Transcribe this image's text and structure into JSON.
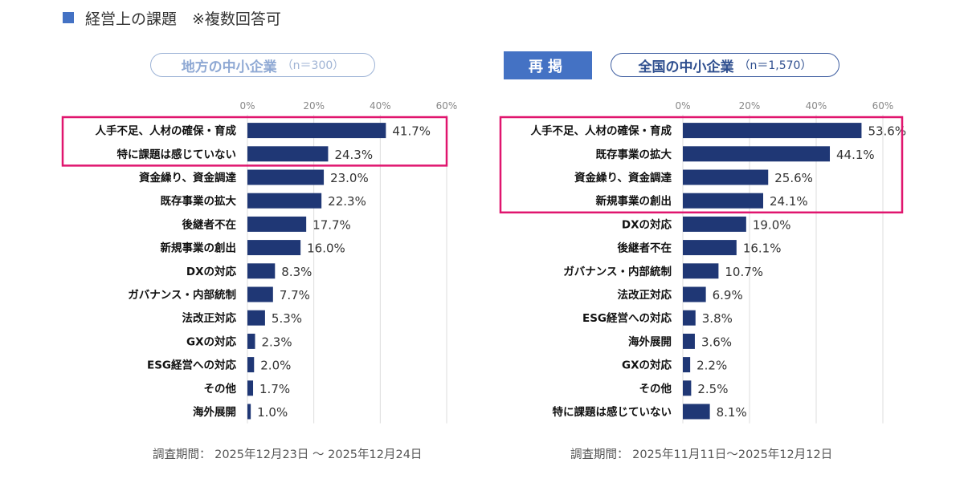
{
  "header": {
    "text": "経営上の課題　※複数回答可",
    "icon": "blue-square"
  },
  "left": {
    "pill_title": "地方の中小企業",
    "pill_note": "（n＝300）",
    "footer": "調査期間：  2025年12月23日 ～ 2025年12月24日"
  },
  "right": {
    "badge": "再掲",
    "pill_title": "全国の中小企業",
    "pill_note": "（n＝1,570）",
    "footer": "調査期間：  2025年11月11日～2025年12月12日"
  },
  "colors": {
    "bar": "#1f3775",
    "highlight": "#e0156e",
    "accent": "#4472c4",
    "grid": "#dddddd"
  },
  "chart_data": [
    {
      "type": "bar",
      "orientation": "horizontal",
      "categories": [
        "人手不足、人材の確保・育成",
        "特に課題は感じていない",
        "資金繰り、資金調達",
        "既存事業の拡大",
        "後継者不在",
        "新規事業の創出",
        "DXの対応",
        "ガバナンス・内部統制",
        "法改正対応",
        "GXの対応",
        "ESG経営への対応",
        "その他",
        "海外展開"
      ],
      "values": [
        41.7,
        24.3,
        23.0,
        22.3,
        17.7,
        16.0,
        8.3,
        7.7,
        5.3,
        2.3,
        2.0,
        1.7,
        1.0
      ],
      "value_labels": [
        "41.7%",
        "24.3%",
        "23.0%",
        "22.3%",
        "17.7%",
        "16.0%",
        "8.3%",
        "7.7%",
        "5.3%",
        "2.3%",
        "2.0%",
        "1.7%",
        "1.0%"
      ],
      "xlim": [
        0,
        60
      ],
      "xticks": [
        "0%",
        "20%",
        "40%",
        "60%"
      ],
      "highlighted_categories": [
        0,
        1
      ]
    },
    {
      "type": "bar",
      "orientation": "horizontal",
      "categories": [
        "人手不足、人材の確保・育成",
        "既存事業の拡大",
        "資金繰り、資金調達",
        "新規事業の創出",
        "DXの対応",
        "後継者不在",
        "ガバナンス・内部統制",
        "法改正対応",
        "ESG経営への対応",
        "海外展開",
        "GXの対応",
        "その他",
        "特に課題は感じていない"
      ],
      "values": [
        53.6,
        44.1,
        25.6,
        24.1,
        19.0,
        16.1,
        10.7,
        6.9,
        3.8,
        3.6,
        2.2,
        2.5,
        8.1
      ],
      "value_labels": [
        "53.6%",
        "44.1%",
        "25.6%",
        "24.1%",
        "19.0%",
        "16.1%",
        "10.7%",
        "6.9%",
        "3.8%",
        "3.6%",
        "2.2%",
        "2.5%",
        "8.1%"
      ],
      "xlim": [
        0,
        60
      ],
      "xticks": [
        "0%",
        "20%",
        "40%",
        "60%"
      ],
      "highlighted_categories": [
        0,
        1,
        2,
        3
      ]
    }
  ]
}
